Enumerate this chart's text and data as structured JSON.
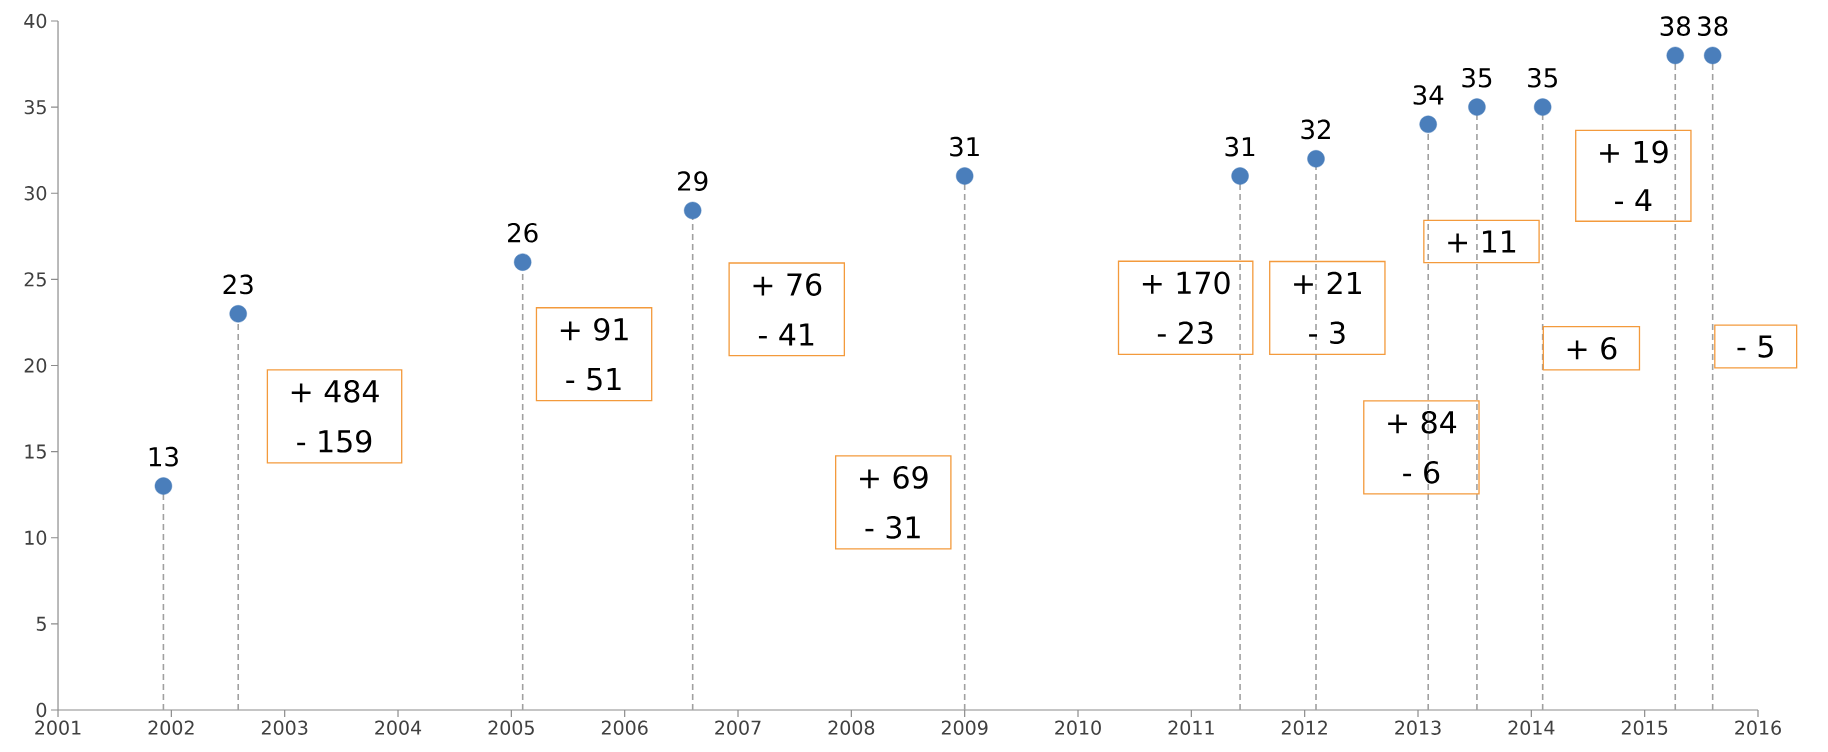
{
  "chart_data": {
    "type": "lollipop",
    "x": [
      2001.93,
      2002.59,
      2005.1,
      2006.6,
      2009.0,
      2011.43,
      2012.1,
      2013.09,
      2013.52,
      2014.1,
      2015.27,
      2015.6
    ],
    "values": [
      13,
      23,
      26,
      29,
      31,
      31,
      32,
      34,
      35,
      35,
      38,
      38
    ],
    "color": "#4a7ebb",
    "marker": "circle",
    "line_style": "dashed",
    "data_labels": true,
    "xlim": [
      2001,
      2016
    ],
    "ylim": [
      0,
      40
    ],
    "xticks": [
      2001,
      2002,
      2003,
      2004,
      2005,
      2006,
      2007,
      2008,
      2009,
      2010,
      2011,
      2012,
      2013,
      2014,
      2015,
      2016
    ],
    "yticks": [
      0,
      5,
      10,
      15,
      20,
      25,
      30,
      35,
      40
    ],
    "annotations": [
      "+ 484",
      "- 159",
      "+ 91",
      "- 51",
      "+ 76",
      "- 41",
      "+ 69",
      "- 31",
      "+ 170",
      "- 23",
      "+ 21",
      "- 3",
      "+ 84",
      "- 6",
      "+ 11",
      "+ 19",
      "- 4",
      "+ 6",
      "- 5"
    ]
  }
}
